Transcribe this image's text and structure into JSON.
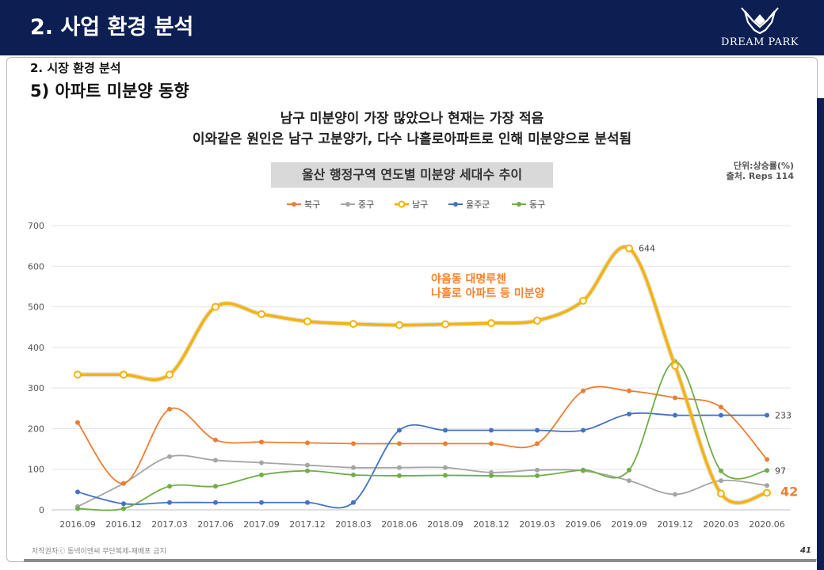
{
  "header": {
    "title": "2. 사업 환경 분석",
    "logo_text": "DREAM PARK"
  },
  "section": {
    "subtitle": "2. 시장 환경 분석",
    "heading": "5) 아파트 미분양 동향"
  },
  "headline": [
    "남구 미분양이 가장 많았으나 현재는 가장 적음",
    "이와같은 원인은 남구 고분양가, 다수 나홀로아파트로 인해 미분양으로 분석됨"
  ],
  "notes": {
    "unit": "단위:상승률(%)",
    "source": "출처. Reps 114"
  },
  "footer": {
    "copyright": "저작권자ⓒ 동넥이엔씨 무단복제-재배포 금지",
    "page": "41"
  },
  "chart_data": {
    "type": "line",
    "title": "울산 행정구역 연도별 미분양 세대수 추이",
    "categories": [
      "2016.09",
      "2016.12",
      "2017.03",
      "2017.06",
      "2017.09",
      "2017.12",
      "2018.03",
      "2018.06",
      "2018.09",
      "2018.12",
      "2019.03",
      "2019.06",
      "2019.09",
      "2019.12",
      "2020.03",
      "2020.06"
    ],
    "ylim": [
      0,
      700
    ],
    "yticks": [
      "0",
      "100",
      "200",
      "300",
      "400",
      "500",
      "600",
      "700"
    ],
    "grid": true,
    "legend_position": "top",
    "series": [
      {
        "name": "북구",
        "color": "#ed7d31",
        "values": [
          215,
          65,
          248,
          172,
          167,
          165,
          163,
          163,
          163,
          163,
          163,
          293,
          293,
          276,
          253,
          124
        ]
      },
      {
        "name": "중구",
        "color": "#a5a5a5",
        "values": [
          8,
          65,
          131,
          122,
          116,
          110,
          104,
          104,
          104,
          92,
          98,
          96,
          72,
          38,
          72,
          60
        ]
      },
      {
        "name": "남구",
        "color": "#f5b400",
        "values": [
          333,
          333,
          333,
          500,
          482,
          464,
          458,
          455,
          457,
          460,
          466,
          515,
          644,
          355,
          40,
          42
        ]
      },
      {
        "name": "울주군",
        "color": "#4472c4",
        "values": [
          44,
          15,
          18,
          18,
          18,
          18,
          18,
          196,
          196,
          196,
          196,
          196,
          236,
          233,
          233,
          233
        ]
      },
      {
        "name": "동구",
        "color": "#70ad47",
        "values": [
          3,
          3,
          58,
          58,
          86,
          96,
          86,
          84,
          85,
          84,
          84,
          98,
          98,
          365,
          96,
          97
        ]
      }
    ],
    "data_labels": [
      {
        "series": "남구",
        "index": 12,
        "text": "644"
      },
      {
        "series": "울주군",
        "index": 15,
        "text": "233"
      },
      {
        "series": "동구",
        "index": 15,
        "text": "97"
      },
      {
        "series": "남구",
        "index": 15,
        "text": "42"
      }
    ],
    "annotation": [
      "야음동 대명루첸",
      "나홀로 아파트 등 미분양"
    ]
  }
}
